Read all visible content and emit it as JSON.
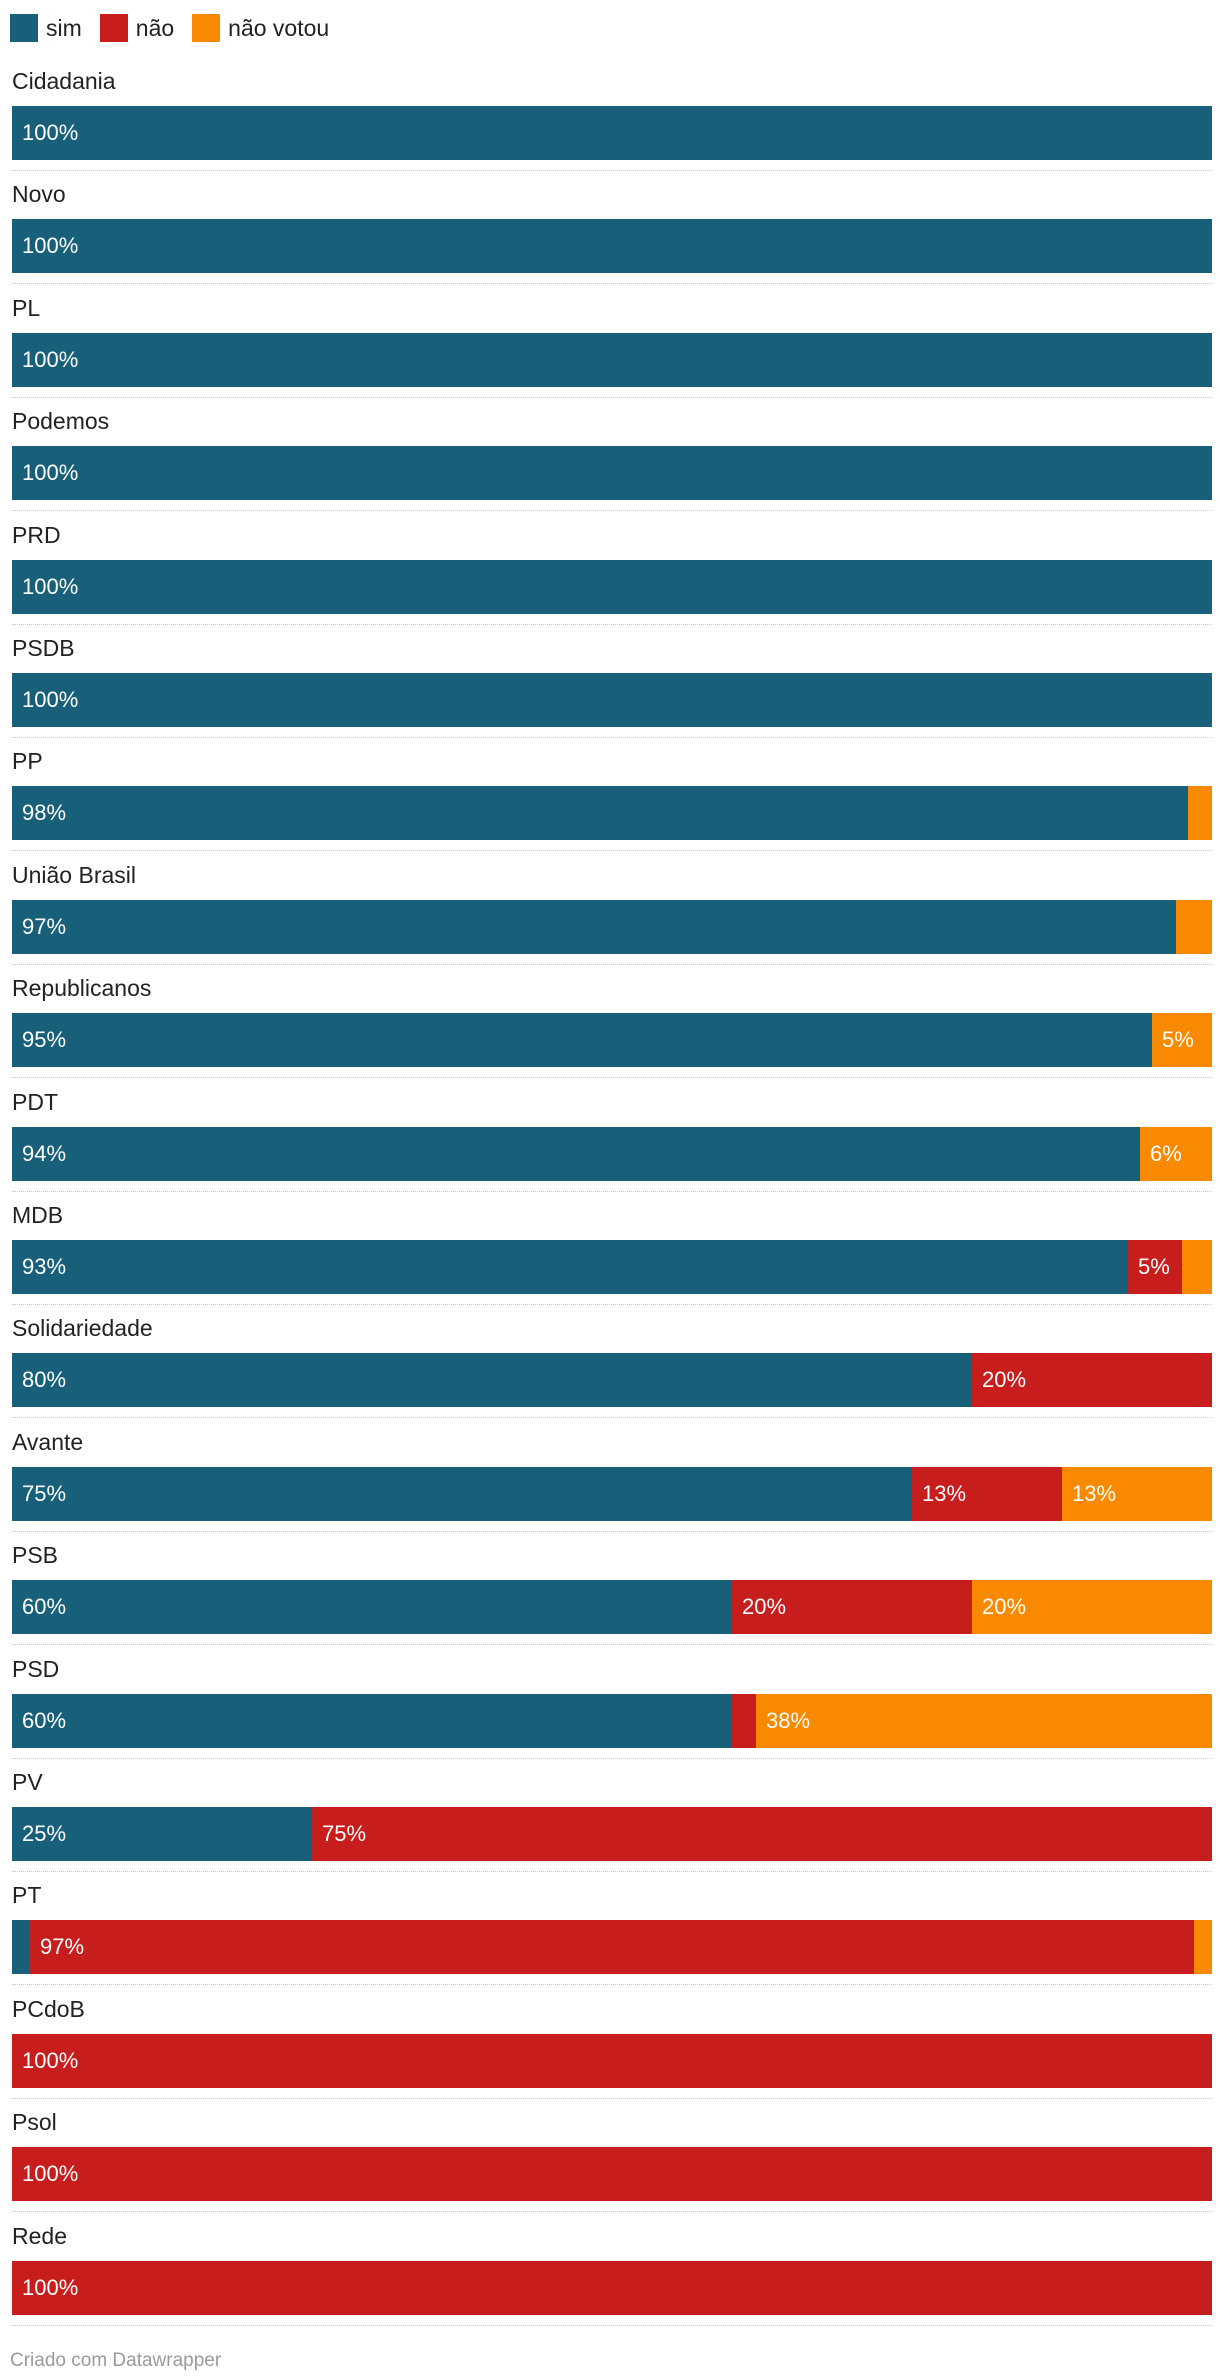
{
  "legend": [
    {
      "key": "sim",
      "label": "sim",
      "color": "#18607a"
    },
    {
      "key": "nao",
      "label": "não",
      "color": "#c81d1d"
    },
    {
      "key": "nao_votou",
      "label": "não votou",
      "color": "#f98a00"
    }
  ],
  "footer": "Criado com Datawrapper",
  "chart_data": {
    "type": "bar",
    "orientation": "horizontal",
    "stacked": "100%",
    "xlim": [
      0,
      100
    ],
    "grid": false,
    "legend_position": "top-left",
    "categories": [
      "Cidadania",
      "Novo",
      "PL",
      "Podemos",
      "PRD",
      "PSDB",
      "PP",
      "União Brasil",
      "Republicanos",
      "PDT",
      "MDB",
      "Solidariedade",
      "Avante",
      "PSB",
      "PSD",
      "PV",
      "PT",
      "PCdoB",
      "Psol",
      "Rede"
    ],
    "series": [
      {
        "name": "sim",
        "color": "#18607a",
        "values": [
          100,
          100,
          100,
          100,
          100,
          100,
          98,
          97,
          95,
          94,
          93,
          80,
          75,
          60,
          60,
          25,
          1.5,
          0,
          0,
          0
        ],
        "labels": [
          "100%",
          "100%",
          "100%",
          "100%",
          "100%",
          "100%",
          "98%",
          "97%",
          "95%",
          "94%",
          "93%",
          "80%",
          "75%",
          "60%",
          "60%",
          "25%",
          "",
          "",
          "",
          ""
        ]
      },
      {
        "name": "não",
        "color": "#c81d1d",
        "values": [
          0,
          0,
          0,
          0,
          0,
          0,
          0,
          0,
          0,
          0,
          4.5,
          20,
          12.5,
          20,
          2,
          75,
          97,
          100,
          100,
          100
        ],
        "labels": [
          "",
          "",
          "",
          "",
          "",
          "",
          "",
          "",
          "",
          "",
          "5%",
          "20%",
          "13%",
          "20%",
          "",
          "75%",
          "97%",
          "100%",
          "100%",
          "100%"
        ]
      },
      {
        "name": "não votou",
        "color": "#f98a00",
        "values": [
          0,
          0,
          0,
          0,
          0,
          0,
          2,
          3,
          5,
          6,
          2.5,
          0,
          12.5,
          20,
          38,
          0,
          1.5,
          0,
          0,
          0
        ],
        "labels": [
          "",
          "",
          "",
          "",
          "",
          "",
          "",
          "",
          "5%",
          "6%",
          "",
          "",
          "13%",
          "20%",
          "38%",
          "",
          "",
          "",
          "",
          ""
        ]
      }
    ]
  }
}
